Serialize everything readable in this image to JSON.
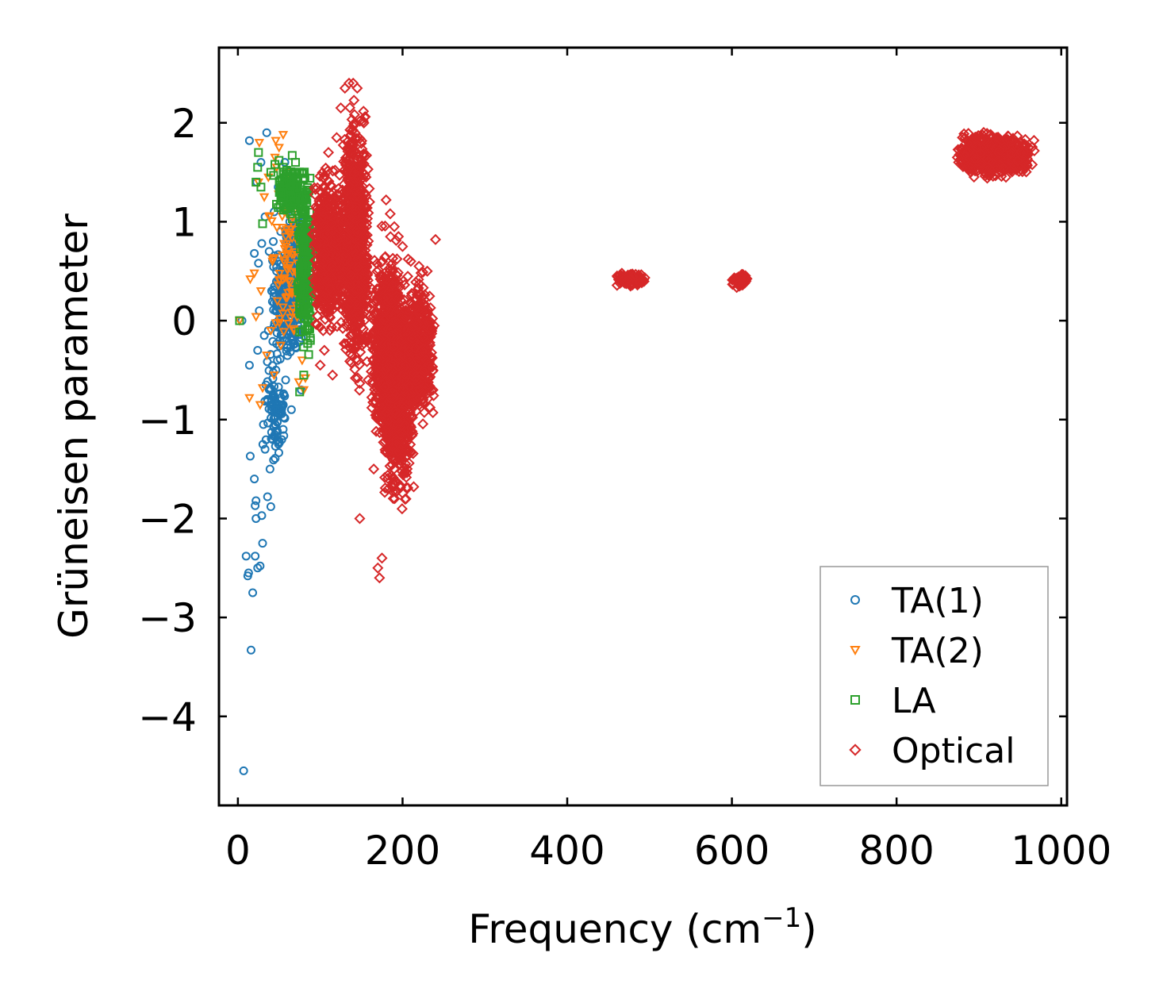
{
  "chart_data": {
    "type": "scatter",
    "xlabel": "Frequency (cm",
    "xlabel_superscript": "−1",
    "xlabel_close": ")",
    "ylabel": "Grüneisen parameter",
    "xlim": [
      -23,
      1007
    ],
    "ylim": [
      -4.9,
      2.76
    ],
    "x_ticks": [
      0,
      200,
      400,
      600,
      800,
      1000
    ],
    "x_tick_labels": [
      "0",
      "200",
      "400",
      "600",
      "800",
      "1000"
    ],
    "y_ticks": [
      -4,
      -3,
      -2,
      -1,
      0,
      1,
      2
    ],
    "y_tick_labels": [
      "−4",
      "−3",
      "−2",
      "−1",
      "0",
      "1",
      "2"
    ],
    "grid": false,
    "legend_position": "bottom-right",
    "series": [
      {
        "name": "TA(1)",
        "marker": "circle",
        "color": "#1f77b4",
        "points": [
          [
            5,
            0
          ],
          [
            7,
            -4.55
          ],
          [
            10,
            -2.38
          ],
          [
            12,
            -2.58
          ],
          [
            13,
            -2.55
          ],
          [
            14,
            -0.45
          ],
          [
            14,
            1.82
          ],
          [
            15,
            -1.37
          ],
          [
            16,
            -3.33
          ],
          [
            18,
            -2.75
          ],
          [
            20,
            -1.6
          ],
          [
            20,
            0.68
          ],
          [
            21,
            -2.38
          ],
          [
            21,
            -1.87
          ],
          [
            22,
            -1.82
          ],
          [
            22,
            -2.0
          ],
          [
            23,
            1.4
          ],
          [
            24,
            -2.5
          ],
          [
            24,
            -0.3
          ],
          [
            25,
            0.58
          ],
          [
            26,
            0.1
          ],
          [
            27,
            -2.48
          ],
          [
            28,
            1.6
          ],
          [
            29,
            -1.97
          ],
          [
            29,
            0.78
          ],
          [
            30,
            -2.25
          ],
          [
            31,
            -1.05
          ],
          [
            32,
            -0.15
          ],
          [
            33,
            -1.3
          ],
          [
            33,
            1.05
          ],
          [
            34,
            -0.65
          ],
          [
            35,
            1.9
          ],
          [
            36,
            -1.78
          ],
          [
            37,
            -0.1
          ],
          [
            38,
            0.7
          ],
          [
            39,
            -1.5
          ],
          [
            40,
            -1.88
          ],
          [
            41,
            0.3
          ],
          [
            42,
            -1.2
          ],
          [
            43,
            0.8
          ],
          [
            44,
            1.1
          ],
          [
            45,
            -0.8
          ],
          [
            47,
            0.5
          ],
          [
            48,
            -0.4
          ],
          [
            49,
            1.35
          ],
          [
            51,
            -0.2
          ],
          [
            52,
            0.9
          ],
          [
            53,
            -0.9
          ],
          [
            55,
            0.2
          ],
          [
            57,
            1.6
          ],
          [
            58,
            -0.6
          ],
          [
            60,
            0.4
          ],
          [
            63,
            1.0
          ],
          [
            65,
            -0.9
          ],
          [
            72,
            1.2
          ],
          [
            77,
            -0.7
          ]
        ],
        "clusters": [
          {
            "x_range": [
              40,
              80
            ],
            "y_range": [
              -0.5,
              0.9
            ],
            "count": 260
          },
          {
            "x_range": [
              30,
              60
            ],
            "y_range": [
              -1.6,
              -0.2
            ],
            "count": 90
          },
          {
            "x_range": [
              55,
              85
            ],
            "y_range": [
              0.3,
              1.15
            ],
            "count": 120
          }
        ]
      },
      {
        "name": "TA(2)",
        "marker": "triangle-down",
        "color": "#ff7f0e",
        "points": [
          [
            2,
            0
          ],
          [
            14,
            -0.78
          ],
          [
            15,
            0.42
          ],
          [
            20,
            0.48
          ],
          [
            22,
            0.04
          ],
          [
            25,
            1.4
          ],
          [
            26,
            1.8
          ],
          [
            27,
            -0.85
          ],
          [
            28,
            0.3
          ],
          [
            30,
            -0.68
          ],
          [
            32,
            1.25
          ],
          [
            35,
            -0.35
          ],
          [
            37,
            1.45
          ],
          [
            38,
            1.05
          ],
          [
            40,
            -0.1
          ],
          [
            42,
            0.6
          ],
          [
            44,
            -0.55
          ],
          [
            45,
            1.65
          ],
          [
            46,
            1.82
          ],
          [
            47,
            1.55
          ],
          [
            48,
            0.2
          ],
          [
            50,
            1.75
          ],
          [
            52,
            -0.25
          ],
          [
            55,
            1.88
          ],
          [
            58,
            0.85
          ],
          [
            62,
            1.5
          ],
          [
            68,
            -0.1
          ],
          [
            70,
            1.3
          ],
          [
            74,
            -0.62
          ],
          [
            78,
            -0.4
          ],
          [
            80,
            -0.7
          ],
          [
            82,
            -0.58
          ]
        ],
        "clusters": [
          {
            "x_range": [
              35,
              85
            ],
            "y_range": [
              -0.6,
              1.55
            ],
            "count": 90
          }
        ]
      },
      {
        "name": "LA",
        "marker": "square",
        "color": "#2ca02c",
        "points": [
          [
            2,
            0
          ],
          [
            22,
            1.4
          ],
          [
            24,
            1.55
          ],
          [
            25,
            1.7
          ],
          [
            28,
            1.35
          ],
          [
            30,
            0.98
          ],
          [
            40,
            1.5
          ],
          [
            45,
            1.58
          ],
          [
            50,
            1.62
          ],
          [
            55,
            1.55
          ],
          [
            60,
            1.45
          ],
          [
            66,
            1.67
          ],
          [
            70,
            1.6
          ],
          [
            75,
            -0.72
          ],
          [
            80,
            -0.55
          ]
        ],
        "clusters": [
          {
            "x_range": [
              40,
              92
            ],
            "y_range": [
              1.0,
              1.6
            ],
            "count": 160
          },
          {
            "x_range": [
              72,
              92
            ],
            "y_range": [
              -0.5,
              1.6
            ],
            "count": 220
          }
        ]
      },
      {
        "name": "Optical",
        "marker": "diamond",
        "color": "#d62728",
        "points": [
          [
            100,
            -0.45
          ],
          [
            105,
            -0.3
          ],
          [
            110,
            1.7
          ],
          [
            115,
            -0.55
          ],
          [
            120,
            1.85
          ],
          [
            125,
            2.15
          ],
          [
            130,
            2.35
          ],
          [
            135,
            2.4
          ],
          [
            140,
            2.4
          ],
          [
            145,
            2.35
          ],
          [
            148,
            -2.0
          ],
          [
            160,
            1.2
          ],
          [
            165,
            -1.5
          ],
          [
            170,
            -2.5
          ],
          [
            172,
            -2.6
          ],
          [
            175,
            -2.4
          ],
          [
            180,
            1.22
          ],
          [
            185,
            1.08
          ],
          [
            190,
            0.95
          ],
          [
            195,
            0.85
          ],
          [
            200,
            0.75
          ],
          [
            210,
            0.6
          ],
          [
            220,
            0.55
          ],
          [
            230,
            0.5
          ],
          [
            240,
            0.82
          ]
        ],
        "clusters": [
          {
            "x_range": [
              90,
              130
            ],
            "y_range": [
              -0.3,
              1.7
            ],
            "count": 700
          },
          {
            "x_range": [
              125,
              160
            ],
            "y_range": [
              -0.8,
              2.4
            ],
            "count": 900
          },
          {
            "x_range": [
              160,
              200
            ],
            "y_range": [
              -1.5,
              1.0
            ],
            "count": 700
          },
          {
            "x_range": [
              175,
              215
            ],
            "y_range": [
              -2.1,
              0.7
            ],
            "count": 800
          },
          {
            "x_range": [
              200,
              240
            ],
            "y_range": [
              -1.2,
              0.6
            ],
            "count": 500
          },
          {
            "x_range": [
              458,
              495
            ],
            "y_range": [
              0.33,
              0.5
            ],
            "count": 120
          },
          {
            "x_range": [
              600,
              620
            ],
            "y_range": [
              0.33,
              0.48
            ],
            "count": 80
          },
          {
            "x_range": [
              870,
              970
            ],
            "y_range": [
              1.4,
              1.95
            ],
            "count": 700
          }
        ]
      }
    ]
  }
}
